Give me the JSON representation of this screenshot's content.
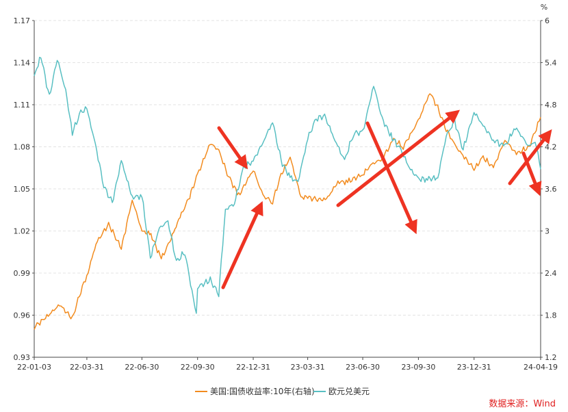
{
  "chart_data": {
    "type": "line",
    "title": "",
    "unit_right": "%",
    "x_tick_labels": [
      "22-01-03",
      "22-03-31",
      "22-06-30",
      "22-09-30",
      "22-12-31",
      "23-03-31",
      "23-06-30",
      "23-09-30",
      "23-12-31",
      "24-04-19"
    ],
    "left_axis": {
      "ticks": [
        "0.93",
        "0.96",
        "0.99",
        "1.02",
        "1.05",
        "1.08",
        "1.11",
        "1.14",
        "1.17"
      ],
      "ylim": [
        0.93,
        1.17
      ]
    },
    "right_axis": {
      "ticks": [
        "1.2",
        "1.8",
        "2.4",
        "3",
        "3.6",
        "4.2",
        "4.8",
        "5.4",
        "6"
      ],
      "ylim": [
        1.2,
        6.0
      ]
    },
    "grid": true,
    "legend_position": "bottom",
    "series": [
      {
        "name": "美国:国债收益率:10年(右轴)",
        "axis": "right",
        "color": "#f28b1e",
        "points": [
          [
            "22-01-03",
            1.63
          ],
          [
            "22-01-24",
            1.78
          ],
          [
            "22-02-14",
            1.95
          ],
          [
            "22-03-07",
            1.75
          ],
          [
            "22-03-21",
            2.15
          ],
          [
            "22-03-31",
            2.35
          ],
          [
            "22-04-15",
            2.82
          ],
          [
            "22-05-06",
            3.1
          ],
          [
            "22-05-27",
            2.75
          ],
          [
            "22-06-14",
            3.45
          ],
          [
            "22-06-30",
            3.0
          ],
          [
            "22-07-15",
            2.95
          ],
          [
            "22-08-01",
            2.6
          ],
          [
            "22-08-15",
            2.85
          ],
          [
            "22-09-01",
            3.2
          ],
          [
            "22-09-15",
            3.45
          ],
          [
            "22-09-30",
            3.8
          ],
          [
            "22-10-21",
            4.25
          ],
          [
            "22-11-04",
            4.15
          ],
          [
            "22-11-18",
            3.82
          ],
          [
            "22-12-07",
            3.5
          ],
          [
            "22-12-31",
            3.88
          ],
          [
            "23-01-16",
            3.5
          ],
          [
            "23-02-01",
            3.42
          ],
          [
            "23-02-15",
            3.8
          ],
          [
            "23-03-02",
            4.05
          ],
          [
            "23-03-20",
            3.48
          ],
          [
            "23-03-31",
            3.48
          ],
          [
            "23-04-14",
            3.45
          ],
          [
            "23-05-01",
            3.45
          ],
          [
            "23-05-20",
            3.7
          ],
          [
            "23-06-05",
            3.7
          ],
          [
            "23-06-30",
            3.81
          ],
          [
            "23-07-15",
            3.95
          ],
          [
            "23-08-01",
            4.03
          ],
          [
            "23-08-20",
            4.3
          ],
          [
            "23-09-05",
            4.2
          ],
          [
            "23-09-30",
            4.57
          ],
          [
            "23-10-19",
            4.98
          ],
          [
            "23-11-01",
            4.75
          ],
          [
            "23-11-15",
            4.45
          ],
          [
            "23-12-01",
            4.2
          ],
          [
            "23-12-31",
            3.88
          ],
          [
            "24-01-15",
            4.05
          ],
          [
            "24-02-01",
            3.9
          ],
          [
            "24-02-20",
            4.3
          ],
          [
            "24-03-10",
            4.1
          ],
          [
            "24-03-31",
            4.2
          ],
          [
            "24-04-19",
            4.62
          ]
        ]
      },
      {
        "name": "欧元兑美元",
        "axis": "left",
        "color": "#58bfc2",
        "points": [
          [
            "22-01-03",
            1.13
          ],
          [
            "22-01-14",
            1.145
          ],
          [
            "22-01-28",
            1.115
          ],
          [
            "22-02-10",
            1.143
          ],
          [
            "22-02-24",
            1.12
          ],
          [
            "22-03-07",
            1.09
          ],
          [
            "22-03-21",
            1.105
          ],
          [
            "22-03-31",
            1.107
          ],
          [
            "22-04-14",
            1.082
          ],
          [
            "22-04-28",
            1.052
          ],
          [
            "22-05-12",
            1.04
          ],
          [
            "22-05-27",
            1.07
          ],
          [
            "22-06-14",
            1.044
          ],
          [
            "22-06-30",
            1.045
          ],
          [
            "22-07-14",
            1.001
          ],
          [
            "22-07-29",
            1.022
          ],
          [
            "22-08-12",
            1.027
          ],
          [
            "22-08-26",
            0.998
          ],
          [
            "22-09-09",
            1.005
          ],
          [
            "22-09-28",
            0.96
          ],
          [
            "22-09-30",
            0.98
          ],
          [
            "22-10-21",
            0.985
          ],
          [
            "22-11-04",
            0.975
          ],
          [
            "22-11-15",
            1.035
          ],
          [
            "22-11-30",
            1.04
          ],
          [
            "22-12-15",
            1.065
          ],
          [
            "22-12-31",
            1.07
          ],
          [
            "23-01-16",
            1.083
          ],
          [
            "23-02-01",
            1.098
          ],
          [
            "23-02-15",
            1.07
          ],
          [
            "23-03-02",
            1.058
          ],
          [
            "23-03-15",
            1.055
          ],
          [
            "23-03-31",
            1.086
          ],
          [
            "23-04-14",
            1.1
          ],
          [
            "23-04-28",
            1.102
          ],
          [
            "23-05-15",
            1.085
          ],
          [
            "23-05-31",
            1.07
          ],
          [
            "23-06-15",
            1.09
          ],
          [
            "23-06-30",
            1.09
          ],
          [
            "23-07-18",
            1.124
          ],
          [
            "23-08-01",
            1.1
          ],
          [
            "23-08-18",
            1.086
          ],
          [
            "23-09-01",
            1.078
          ],
          [
            "23-09-15",
            1.065
          ],
          [
            "23-09-30",
            1.057
          ],
          [
            "23-10-15",
            1.057
          ],
          [
            "23-11-01",
            1.058
          ],
          [
            "23-11-15",
            1.088
          ],
          [
            "23-11-29",
            1.098
          ],
          [
            "23-12-13",
            1.078
          ],
          [
            "23-12-31",
            1.105
          ],
          [
            "24-01-15",
            1.095
          ],
          [
            "24-02-01",
            1.085
          ],
          [
            "24-02-20",
            1.08
          ],
          [
            "24-03-08",
            1.094
          ],
          [
            "24-03-31",
            1.08
          ],
          [
            "24-04-10",
            1.085
          ],
          [
            "24-04-19",
            1.064
          ]
        ]
      }
    ]
  },
  "source_label": "数据来源：Wind"
}
